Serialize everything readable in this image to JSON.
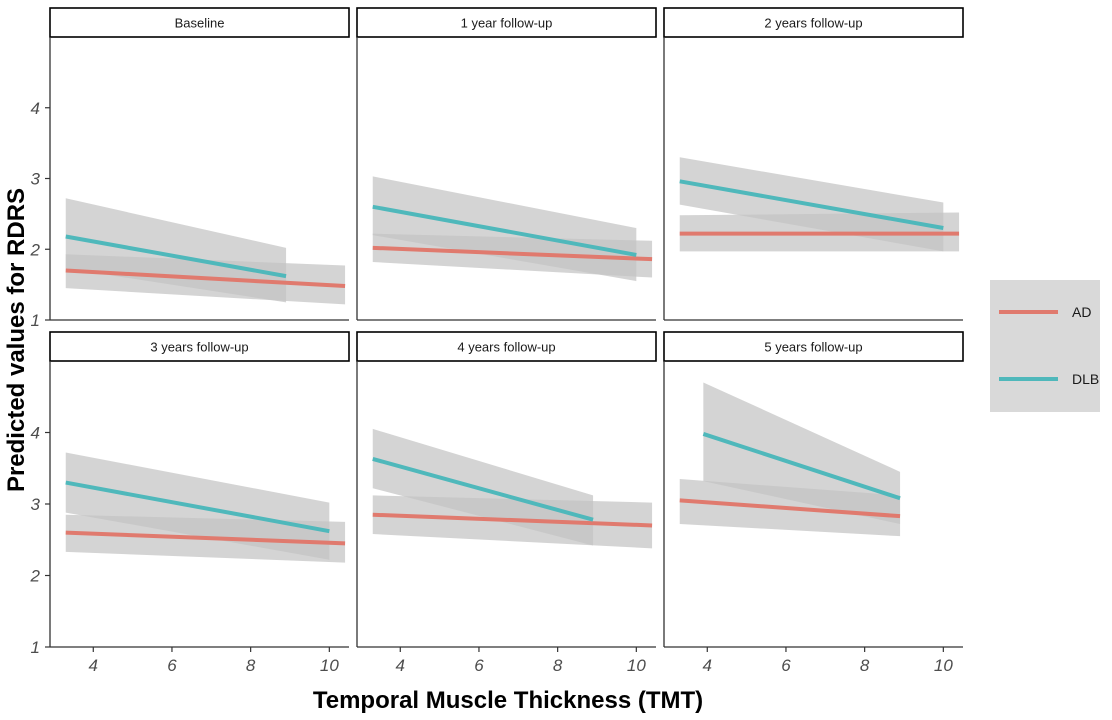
{
  "chart_data": {
    "type": "line",
    "xlabel": "Temporal Muscle Thickness (TMT)",
    "ylabel": "Predicted values for RDRS",
    "xlim": [
      2.9,
      10.5
    ],
    "ylim": [
      1,
      5
    ],
    "x_ticks": [
      4,
      6,
      8,
      10
    ],
    "y_ticks": [
      1,
      2,
      3,
      4
    ],
    "grid": false,
    "legend_position": "right",
    "colors": {
      "AD": "#e07a6e",
      "DLB": "#4fb8bb",
      "band": "#c4c4c4"
    },
    "legend": [
      {
        "label": "AD",
        "color": "#e07a6e"
      },
      {
        "label": "DLB",
        "color": "#4fb8bb"
      }
    ],
    "panels": [
      {
        "title": "Baseline",
        "series": [
          {
            "name": "AD",
            "x": [
              3.3,
              10.4
            ],
            "y": [
              1.7,
              1.48
            ],
            "lower": [
              1.45,
              1.22
            ],
            "upper": [
              1.93,
              1.77
            ]
          },
          {
            "name": "DLB",
            "x": [
              3.3,
              8.9
            ],
            "y": [
              2.18,
              1.62
            ],
            "lower": [
              1.73,
              1.25
            ],
            "upper": [
              2.72,
              2.02
            ]
          }
        ]
      },
      {
        "title": "1 year follow-up",
        "series": [
          {
            "name": "AD",
            "x": [
              3.3,
              10.4
            ],
            "y": [
              2.02,
              1.86
            ],
            "lower": [
              1.82,
              1.6
            ],
            "upper": [
              2.22,
              2.12
            ]
          },
          {
            "name": "DLB",
            "x": [
              3.3,
              10.0
            ],
            "y": [
              2.6,
              1.92
            ],
            "lower": [
              2.2,
              1.55
            ],
            "upper": [
              3.03,
              2.3
            ]
          }
        ]
      },
      {
        "title": "2 years follow-up",
        "series": [
          {
            "name": "AD",
            "x": [
              3.3,
              10.4
            ],
            "y": [
              2.22,
              2.22
            ],
            "lower": [
              1.97,
              1.97
            ],
            "upper": [
              2.48,
              2.52
            ]
          },
          {
            "name": "DLB",
            "x": [
              3.3,
              10.0
            ],
            "y": [
              2.96,
              2.3
            ],
            "lower": [
              2.63,
              1.97
            ],
            "upper": [
              3.3,
              2.66
            ]
          }
        ]
      },
      {
        "title": "3 years follow-up",
        "series": [
          {
            "name": "AD",
            "x": [
              3.3,
              10.4
            ],
            "y": [
              2.6,
              2.45
            ],
            "lower": [
              2.33,
              2.18
            ],
            "upper": [
              2.85,
              2.75
            ]
          },
          {
            "name": "DLB",
            "x": [
              3.3,
              10.0
            ],
            "y": [
              3.3,
              2.62
            ],
            "lower": [
              2.88,
              2.22
            ],
            "upper": [
              3.72,
              3.02
            ]
          }
        ]
      },
      {
        "title": "4 years follow-up",
        "series": [
          {
            "name": "AD",
            "x": [
              3.3,
              10.4
            ],
            "y": [
              2.85,
              2.7
            ],
            "lower": [
              2.58,
              2.38
            ],
            "upper": [
              3.12,
              3.02
            ]
          },
          {
            "name": "DLB",
            "x": [
              3.3,
              8.9
            ],
            "y": [
              3.63,
              2.78
            ],
            "lower": [
              3.22,
              2.42
            ],
            "upper": [
              4.05,
              3.12
            ]
          }
        ]
      },
      {
        "title": "5 years follow-up",
        "series": [
          {
            "name": "AD",
            "x": [
              3.3,
              8.9
            ],
            "y": [
              3.05,
              2.83
            ],
            "lower": [
              2.72,
              2.55
            ],
            "upper": [
              3.35,
              3.12
            ]
          },
          {
            "name": "DLB",
            "x": [
              3.9,
              8.9
            ],
            "y": [
              3.98,
              3.08
            ],
            "lower": [
              3.32,
              2.72
            ],
            "upper": [
              4.7,
              3.45
            ]
          }
        ]
      }
    ]
  }
}
